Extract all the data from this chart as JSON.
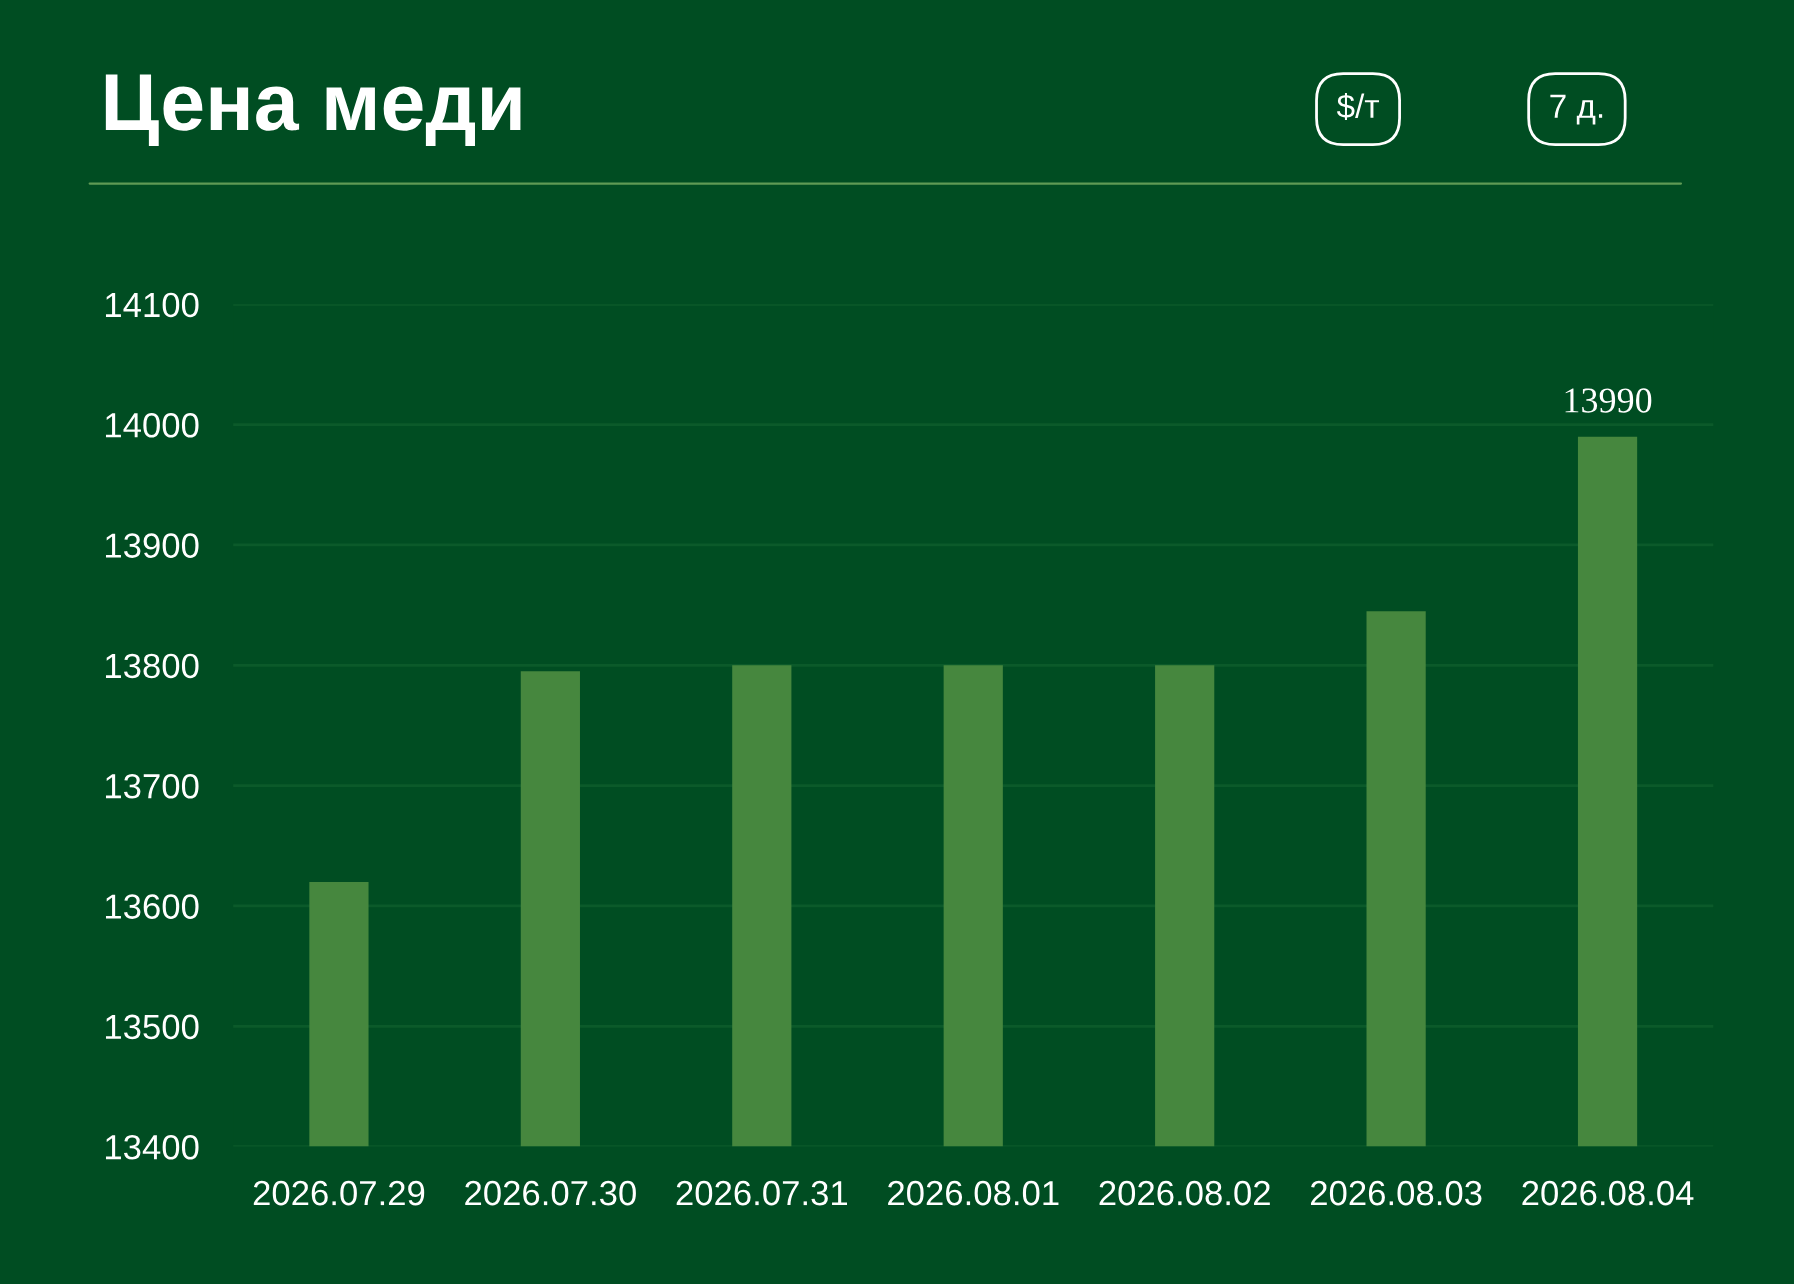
{
  "chart_data": {
    "type": "bar",
    "title": "Цена меди",
    "annotations": [
      "$/т",
      "7 д."
    ],
    "categories": [
      "2026.07.29",
      "2026.07.30",
      "2026.07.31",
      "2026.08.01",
      "2026.08.02",
      "2026.08.03",
      "2026.08.04"
    ],
    "values": [
      13620,
      13795,
      13800,
      13800,
      13800,
      13845,
      13990
    ],
    "value_labels": [
      null,
      null,
      null,
      null,
      null,
      null,
      "13990"
    ],
    "color": "#46873e",
    "ylim": [
      13400,
      14100
    ],
    "yticks": [
      13400,
      13500,
      13600,
      13700,
      13800,
      13900,
      14000,
      14100
    ],
    "grid": "y",
    "legend": false
  }
}
